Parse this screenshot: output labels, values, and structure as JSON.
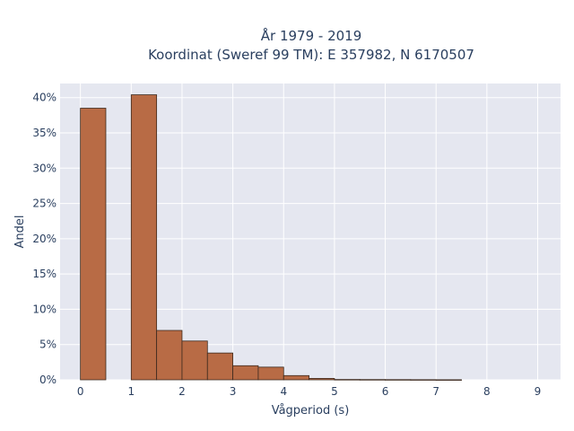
{
  "chart_data": {
    "type": "bar",
    "title_lines": [
      "År 1979 - 2019",
      "Koordinat (Sweref 99 TM): E 357982, N 6170507"
    ],
    "xlabel": "Vågperiod (s)",
    "ylabel": "Andel",
    "bin_width": 0.5,
    "bins": [
      {
        "start": 0.0,
        "end": 0.5,
        "value": 0.385
      },
      {
        "start": 0.5,
        "end": 1.0,
        "value": 0.0
      },
      {
        "start": 1.0,
        "end": 1.5,
        "value": 0.404
      },
      {
        "start": 1.5,
        "end": 2.0,
        "value": 0.07
      },
      {
        "start": 2.0,
        "end": 2.5,
        "value": 0.055
      },
      {
        "start": 2.5,
        "end": 3.0,
        "value": 0.038
      },
      {
        "start": 3.0,
        "end": 3.5,
        "value": 0.02
      },
      {
        "start": 3.5,
        "end": 4.0,
        "value": 0.018
      },
      {
        "start": 4.0,
        "end": 4.5,
        "value": 0.006
      },
      {
        "start": 4.5,
        "end": 5.0,
        "value": 0.002
      },
      {
        "start": 5.0,
        "end": 5.5,
        "value": 0.0005
      },
      {
        "start": 5.5,
        "end": 6.0,
        "value": 0.0004
      },
      {
        "start": 6.0,
        "end": 6.5,
        "value": 0.0003
      },
      {
        "start": 6.5,
        "end": 7.0,
        "value": 0.0002
      },
      {
        "start": 7.0,
        "end": 7.5,
        "value": 0.0001
      }
    ],
    "xlim": [
      -0.4,
      9.45
    ],
    "ylim": [
      0,
      0.42
    ],
    "x_ticks": [
      0,
      1,
      2,
      3,
      4,
      5,
      6,
      7,
      8,
      9
    ],
    "x_tick_labels": [
      "0",
      "1",
      "2",
      "3",
      "4",
      "5",
      "6",
      "7",
      "8",
      "9"
    ],
    "y_ticks": [
      0,
      0.05,
      0.1,
      0.15,
      0.2,
      0.25,
      0.3,
      0.35,
      0.4
    ],
    "y_tick_labels": [
      "0%",
      "5%",
      "10%",
      "15%",
      "20%",
      "25%",
      "30%",
      "35%",
      "40%"
    ],
    "grid": true,
    "colors": {
      "bar_fill": "#b86b45",
      "bar_stroke": "#3d2a1e",
      "plot_background": "#e5e7f0",
      "grid": "#ffffff",
      "text": "#2a3f5f"
    }
  }
}
